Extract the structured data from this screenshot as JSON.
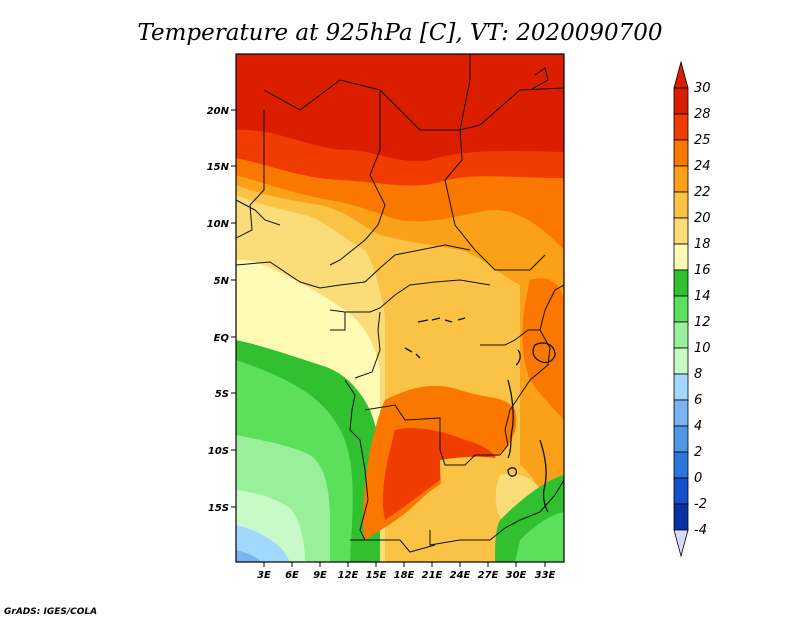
{
  "title": "Temperature at 925hPa [C], VT: 2020090700",
  "credit": "GrADS: IGES/COLA",
  "map": {
    "variable": "Temperature at 925hPa",
    "units": "C",
    "valid_time": "2020090700",
    "lat_ticks": [
      "20N",
      "15N",
      "10N",
      "5N",
      "EQ",
      "5S",
      "10S",
      "15S"
    ],
    "lon_ticks": [
      "3E",
      "6E",
      "9E",
      "12E",
      "15E",
      "18E",
      "21E",
      "24E",
      "27E",
      "30E",
      "33E"
    ]
  },
  "colorbar": {
    "labels": [
      "30",
      "28",
      "25",
      "24",
      "22",
      "20",
      "18",
      "16",
      "14",
      "12",
      "10",
      "8",
      "6",
      "4",
      "2",
      "0",
      "-2",
      "-4"
    ],
    "colors": [
      "#dc1e00",
      "#f03c00",
      "#fa7800",
      "#faa019",
      "#fac346",
      "#fadc78",
      "#fffab4",
      "#30c030",
      "#5ce05c",
      "#9af09a",
      "#c8fac8",
      "#a0d8ff",
      "#78b4f0",
      "#5096e6",
      "#2a78dc",
      "#1450c8",
      "#0a32a0",
      "#000878"
    ],
    "top_color": "#dc1e00",
    "bottom_color": "#d8dcf8"
  },
  "palette": {
    "t30": "#dc1e00",
    "t28": "#f03c00",
    "t25": "#fa7800",
    "t24": "#faa019",
    "t22": "#fac346",
    "t20": "#fadc78",
    "t18": "#fffab4",
    "t16": "#30c030",
    "t14": "#5ce05c",
    "t12": "#9af09a",
    "t10": "#c8fac8",
    "t8": "#a0d8ff",
    "t6": "#78b4f0"
  }
}
